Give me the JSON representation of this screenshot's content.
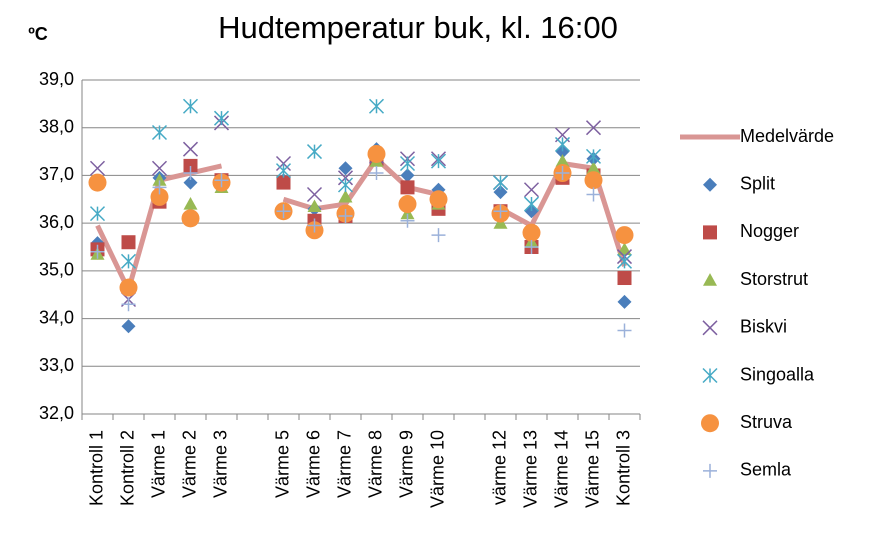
{
  "chart_data": {
    "type": "scatter",
    "title": "Hudtemperatur buk, kl. 16:00",
    "y_label": "ºC",
    "categories": [
      "Kontroll 1",
      "Kontroll 2",
      "Värme 1",
      "Värme 2",
      "Värme 3",
      null,
      "Värme 5",
      "Värme 6",
      "Värme 7",
      "Värme 8",
      "Värme 9",
      "Värme 10",
      null,
      "värme 12",
      "Värme 13",
      "Värme 14",
      "Värme 15",
      "Kontroll 3"
    ],
    "ylim": [
      32,
      39
    ],
    "yticks": [
      {
        "value": 32,
        "label": "32,0"
      },
      {
        "value": 33,
        "label": "33,0"
      },
      {
        "value": 34,
        "label": "34,0"
      },
      {
        "value": 35,
        "label": "35,0"
      },
      {
        "value": 36,
        "label": "36,0"
      },
      {
        "value": 37,
        "label": "37,0"
      },
      {
        "value": 38,
        "label": "38,0"
      },
      {
        "value": 39,
        "label": "39,0"
      }
    ],
    "grid": true,
    "legend": "right",
    "series": [
      {
        "name": "Medelvärde",
        "color": "#d99694",
        "marker": "line",
        "values": [
          35.95,
          34.6,
          36.9,
          37.05,
          37.2,
          null,
          36.5,
          36.3,
          36.4,
          37.35,
          36.75,
          36.6,
          null,
          36.3,
          35.95,
          37.25,
          37.15,
          35.1
        ]
      },
      {
        "name": "Split",
        "color": "#4a7ebb",
        "marker": "diamond",
        "values": [
          35.58,
          33.84,
          36.95,
          36.85,
          36.9,
          null,
          36.9,
          36.3,
          37.15,
          37.55,
          37.0,
          36.7,
          null,
          36.65,
          36.25,
          37.5,
          37.35,
          34.35
        ]
      },
      {
        "name": "Nogger",
        "color": "#be4b48",
        "marker": "square",
        "values": [
          35.45,
          35.6,
          36.45,
          37.2,
          36.9,
          null,
          36.85,
          36.05,
          36.15,
          37.35,
          36.75,
          36.3,
          null,
          36.25,
          35.5,
          36.95,
          37.0,
          34.85
        ]
      },
      {
        "name": "Storstrut",
        "color": "#98b954",
        "marker": "triangle",
        "values": [
          35.35,
          34.65,
          36.9,
          36.4,
          36.75,
          null,
          36.3,
          36.35,
          36.55,
          37.3,
          36.2,
          36.4,
          null,
          36.0,
          35.6,
          37.3,
          37.15,
          35.45
        ]
      },
      {
        "name": "Biskvi",
        "color": "#7d60a0",
        "marker": "x",
        "values": [
          37.15,
          34.4,
          37.15,
          37.55,
          38.1,
          null,
          37.25,
          36.6,
          36.95,
          37.4,
          37.35,
          37.35,
          null,
          36.85,
          36.7,
          37.85,
          38.0,
          35.3
        ]
      },
      {
        "name": "Singoalla",
        "color": "#46aac5",
        "marker": "star",
        "values": [
          36.2,
          35.2,
          37.9,
          38.45,
          38.2,
          null,
          37.1,
          37.5,
          36.8,
          38.45,
          37.25,
          37.3,
          null,
          36.85,
          36.4,
          37.65,
          37.4,
          35.2
        ]
      },
      {
        "name": "Struva",
        "color": "#f69240",
        "marker": "circle",
        "values": [
          36.85,
          34.65,
          36.55,
          36.1,
          36.85,
          null,
          36.25,
          35.85,
          36.2,
          37.45,
          36.4,
          36.5,
          null,
          36.2,
          35.8,
          37.05,
          36.9,
          35.75
        ]
      },
      {
        "name": "Semla",
        "color": "#9bb1da",
        "marker": "plus",
        "values": [
          35.4,
          34.3,
          36.75,
          37.05,
          36.9,
          null,
          36.25,
          35.95,
          36.15,
          37.05,
          36.05,
          35.75,
          null,
          36.25,
          35.5,
          37.05,
          36.6,
          33.75
        ]
      }
    ]
  }
}
